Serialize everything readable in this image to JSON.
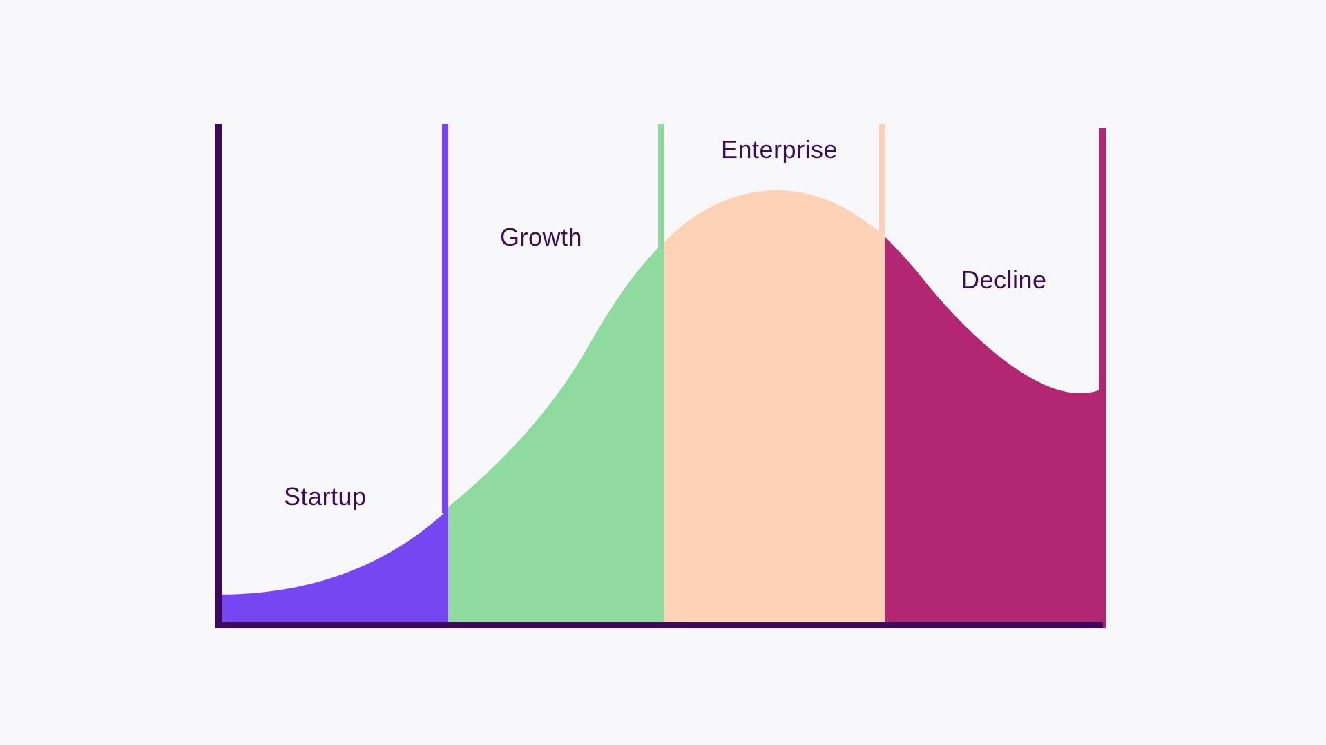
{
  "colors": {
    "background": "#f8f8fa",
    "axis": "#3d0b5b",
    "text": "#3d0b5b",
    "startup": "#7646f2",
    "growth": "#8fda9f",
    "enterprise": "#fed2b6",
    "decline": "#b32772"
  },
  "stages": [
    {
      "key": "startup",
      "label": "Startup"
    },
    {
      "key": "growth",
      "label": "Growth"
    },
    {
      "key": "enterprise",
      "label": "Enterprise"
    },
    {
      "key": "decline",
      "label": "Decline"
    }
  ]
}
